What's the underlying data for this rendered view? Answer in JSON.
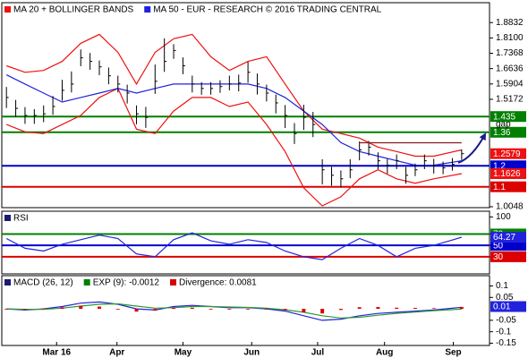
{
  "chart_data": [
    {
      "type": "ohlc",
      "xlim": [
        -0.5,
        52
      ],
      "ylim": [
        1.0005,
        1.978
      ],
      "yticks": [
        1.0048,
        1.5172,
        1.5904,
        1.6636,
        1.7368,
        {
          "value": 1.81,
          "label": "1.8100"
        },
        1.8832
      ],
      "x": [
        0,
        1,
        2,
        3,
        4,
        5,
        6,
        7,
        8,
        9,
        10,
        11,
        12,
        13,
        14,
        15,
        16,
        17,
        18,
        19,
        20,
        21,
        22,
        23,
        24,
        25,
        26,
        27,
        28,
        29,
        30,
        31,
        32,
        33,
        34,
        35,
        36,
        37,
        38,
        39,
        40,
        41,
        42,
        43,
        44,
        45,
        46,
        47,
        48,
        49
      ],
      "high": [
        1.576,
        1.514,
        1.48,
        1.47,
        1.488,
        1.533,
        1.61,
        1.65,
        1.755,
        1.738,
        1.702,
        1.669,
        1.63,
        1.587,
        1.488,
        1.481,
        1.683,
        1.808,
        1.78,
        1.717,
        1.63,
        1.599,
        1.599,
        1.608,
        1.63,
        1.635,
        1.696,
        1.64,
        1.587,
        1.54,
        1.49,
        1.404,
        1.491,
        1.457,
        1.231,
        1.195,
        1.178,
        1.231,
        1.316,
        1.319,
        1.264,
        1.233,
        1.254,
        1.195,
        1.211,
        1.254,
        1.233,
        1.22,
        1.237,
        1.278
      ],
      "low": [
        1.476,
        1.434,
        1.4,
        1.4,
        1.408,
        1.443,
        1.51,
        1.55,
        1.675,
        1.658,
        1.632,
        1.589,
        1.55,
        1.497,
        1.398,
        1.381,
        1.543,
        1.648,
        1.71,
        1.637,
        1.55,
        1.539,
        1.539,
        1.548,
        1.56,
        1.555,
        1.596,
        1.54,
        1.507,
        1.45,
        1.38,
        1.304,
        1.371,
        1.337,
        1.111,
        1.105,
        1.098,
        1.141,
        1.226,
        1.249,
        1.184,
        1.163,
        1.184,
        1.115,
        1.151,
        1.184,
        1.163,
        1.16,
        1.177,
        1.228
      ],
      "close": [
        1.526,
        1.474,
        1.44,
        1.44,
        1.448,
        1.483,
        1.56,
        1.59,
        1.715,
        1.698,
        1.672,
        1.629,
        1.59,
        1.547,
        1.448,
        1.431,
        1.603,
        1.698,
        1.75,
        1.677,
        1.59,
        1.569,
        1.569,
        1.578,
        1.59,
        1.595,
        1.646,
        1.59,
        1.547,
        1.5,
        1.44,
        1.354,
        1.431,
        1.397,
        1.181,
        1.155,
        1.138,
        1.181,
        1.276,
        1.289,
        1.224,
        1.203,
        1.224,
        1.155,
        1.181,
        1.224,
        1.203,
        1.19,
        1.207,
        1.2579
      ],
      "candle_color": "#000000",
      "series": [
        {
          "name": "MA 20 + BOLLINGER BANDS",
          "color": "#ee1111",
          "style": "band",
          "x": [
            0,
            2,
            4,
            6,
            8,
            10,
            12,
            14,
            16,
            18,
            20,
            22,
            24,
            26,
            28,
            30,
            32,
            34,
            36,
            38,
            40,
            42,
            44,
            46,
            49
          ],
          "upper": [
            1.677,
            1.646,
            1.655,
            1.698,
            1.784,
            1.827,
            1.741,
            1.59,
            1.741,
            1.806,
            1.827,
            1.72,
            1.655,
            1.698,
            1.72,
            1.59,
            1.461,
            1.375,
            1.354,
            1.332,
            1.289,
            1.268,
            1.246,
            1.246,
            1.276
          ],
          "lower": [
            1.397,
            1.362,
            1.354,
            1.397,
            1.44,
            1.526,
            1.569,
            1.375,
            1.354,
            1.461,
            1.526,
            1.526,
            1.483,
            1.504,
            1.397,
            1.268,
            1.095,
            1.009,
            1.052,
            1.138,
            1.181,
            1.138,
            1.117,
            1.138,
            1.1626
          ]
        },
        {
          "name": "MA 50 - EUR - RESEARCH © 2016 TRADING CENTRAL",
          "color": "#2222dd",
          "style": "line",
          "x": [
            0,
            2,
            4,
            6,
            8,
            10,
            12,
            14,
            16,
            18,
            20,
            22,
            24,
            26,
            28,
            30,
            32,
            34,
            36,
            38,
            40,
            42,
            44,
            46,
            49
          ],
          "values": [
            1.634,
            1.59,
            1.547,
            1.504,
            1.526,
            1.547,
            1.569,
            1.547,
            1.569,
            1.59,
            1.59,
            1.59,
            1.59,
            1.59,
            1.569,
            1.526,
            1.461,
            1.397,
            1.311,
            1.268,
            1.246,
            1.224,
            1.203,
            1.203,
            1.224
          ]
        }
      ],
      "trendline": {
        "x": [
          38,
          49
        ],
        "values": [
          1.31,
          1.31
        ],
        "color": "#8b1a1a"
      },
      "levels": [
        {
          "value": 1.435,
          "color": "#008000"
        },
        {
          "value": 1.36,
          "color": "#008000"
        },
        {
          "value": 1.2,
          "color": "#0000cc"
        },
        {
          "value": 1.1,
          "color": "#dd0000"
        }
      ],
      "annotation": "gap",
      "last_box_color": "#ee1111"
    },
    {
      "type": "line",
      "xlim": [
        -0.5,
        52
      ],
      "ylim": [
        0,
        110
      ],
      "yticks": [
        30,
        50,
        70,
        100
      ],
      "levels": [
        {
          "value": 70,
          "color": "#008000"
        },
        {
          "value": 50,
          "color": "#0000cc"
        },
        {
          "value": 30,
          "color": "#dd0000"
        }
      ],
      "series": [
        {
          "name": "RSI",
          "color": "#2222dd",
          "legend_color": "#1a1a6e",
          "style": "line",
          "x": [
            0,
            2,
            4,
            6,
            8,
            10,
            12,
            14,
            16,
            18,
            20,
            22,
            24,
            26,
            28,
            30,
            32,
            34,
            36,
            38,
            40,
            42,
            44,
            46,
            49
          ],
          "values": [
            62,
            45,
            40,
            52,
            60,
            68,
            62,
            35,
            30,
            60,
            72,
            58,
            52,
            60,
            55,
            40,
            30,
            25,
            45,
            62,
            50,
            30,
            45,
            50,
            64.27
          ]
        }
      ],
      "last_box_color": "#2222dd"
    },
    {
      "type": "macd",
      "xlim": [
        -0.5,
        52
      ],
      "ylim": [
        -0.16,
        0.145
      ],
      "yticks": [
        -0.15,
        -0.1,
        -0.05,
        0.05,
        0.1
      ],
      "xticks": [
        {
          "value": 5.4,
          "label": "Mar 16"
        },
        {
          "value": 11.9,
          "label": "Apr"
        },
        {
          "value": 19,
          "label": "May"
        },
        {
          "value": 26.4,
          "label": "Jun"
        },
        {
          "value": 33.5,
          "label": "Jul"
        },
        {
          "value": 40.7,
          "label": "Aug"
        },
        {
          "value": 48.1,
          "label": "Sep"
        }
      ],
      "series": [
        {
          "name": "MACD (26, 12)",
          "color": "#2222dd",
          "legend_color": "#1a1a6e",
          "style": "line",
          "x": [
            0,
            2,
            4,
            6,
            8,
            10,
            12,
            14,
            16,
            18,
            20,
            22,
            24,
            26,
            28,
            30,
            32,
            34,
            36,
            38,
            40,
            42,
            44,
            46,
            49
          ],
          "values": [
            0,
            -0.005,
            0,
            0.01,
            0.025,
            0.03,
            0.02,
            0,
            -0.005,
            0.01,
            0.015,
            0.01,
            0.005,
            0.005,
            0,
            -0.01,
            -0.03,
            -0.05,
            -0.045,
            -0.03,
            -0.02,
            -0.015,
            -0.01,
            -0.005,
            0.0069
          ]
        },
        {
          "name": "EXP (9): -0.0012",
          "color": "#2e9a2e",
          "legend_color": "#008000",
          "style": "line",
          "x": [
            0,
            2,
            4,
            6,
            8,
            10,
            12,
            14,
            16,
            18,
            20,
            22,
            24,
            26,
            28,
            30,
            32,
            34,
            36,
            38,
            40,
            42,
            44,
            46,
            49
          ],
          "values": [
            0,
            -0.002,
            -0.002,
            0.003,
            0.012,
            0.02,
            0.022,
            0.012,
            0.003,
            0.005,
            0.01,
            0.01,
            0.008,
            0.006,
            0.003,
            -0.004,
            -0.015,
            -0.03,
            -0.04,
            -0.037,
            -0.028,
            -0.02,
            -0.014,
            -0.008,
            -0.0012
          ]
        },
        {
          "name": "Divergence: 0.0081",
          "color": "#dd0000",
          "legend_color": "#dd0000",
          "style": "histogram",
          "x": [
            0,
            2,
            4,
            6,
            8,
            10,
            12,
            14,
            16,
            18,
            20,
            22,
            24,
            26,
            28,
            30,
            32,
            34,
            36,
            38,
            40,
            42,
            44,
            46,
            49
          ],
          "values": [
            0,
            -0.003,
            0.002,
            0.007,
            0.013,
            0.01,
            -0.002,
            -0.012,
            -0.008,
            0.005,
            0.005,
            0,
            -0.003,
            -0.001,
            -0.003,
            -0.006,
            -0.015,
            -0.02,
            -0.005,
            0.007,
            0.008,
            0.005,
            0.004,
            0.003,
            0.0081
          ]
        }
      ],
      "last_value": 0.01,
      "last_box_color": "#2222dd"
    }
  ]
}
